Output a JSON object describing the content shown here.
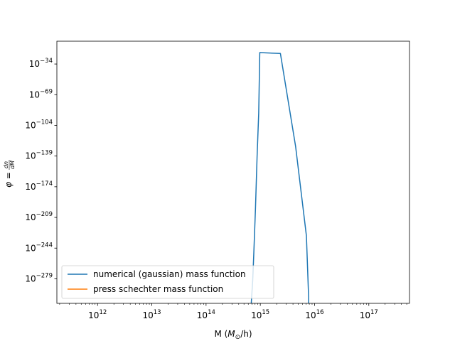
{
  "chart_data": {
    "type": "line",
    "title": "",
    "xlabel": "M ($M_\\odot$/h)",
    "xlabel_display": {
      "prefix": "M (",
      "symbol": "M",
      "subscript": "⊙",
      "suffix": "/h)"
    },
    "ylabel": "$\\phi = \\frac{dn}{dM}$",
    "ylabel_display": {
      "lhs": "φ = ",
      "numerator": "dn",
      "denominator": "dM"
    },
    "xscale": "log",
    "yscale": "log",
    "xlim_exp": [
      11.25,
      17.75
    ],
    "ylim_exp": [
      -307,
      -8
    ],
    "grid": false,
    "legend_location": "lower left",
    "x_ticks": [
      {
        "base": "10",
        "exp": "12",
        "value_exp": 12
      },
      {
        "base": "10",
        "exp": "13",
        "value_exp": 13
      },
      {
        "base": "10",
        "exp": "14",
        "value_exp": 14
      },
      {
        "base": "10",
        "exp": "15",
        "value_exp": 15
      },
      {
        "base": "10",
        "exp": "16",
        "value_exp": 16
      },
      {
        "base": "10",
        "exp": "17",
        "value_exp": 17
      }
    ],
    "y_ticks": [
      {
        "base": "10",
        "exp": "−34",
        "value_exp": -34
      },
      {
        "base": "10",
        "exp": "−69",
        "value_exp": -69
      },
      {
        "base": "10",
        "exp": "−104",
        "value_exp": -104
      },
      {
        "base": "10",
        "exp": "−139",
        "value_exp": -139
      },
      {
        "base": "10",
        "exp": "−174",
        "value_exp": -174
      },
      {
        "base": "10",
        "exp": "−209",
        "value_exp": -209
      },
      {
        "base": "10",
        "exp": "−244",
        "value_exp": -244
      },
      {
        "base": "10",
        "exp": "−279",
        "value_exp": -279
      }
    ],
    "series": [
      {
        "name": "numerical (gaussian) mass function",
        "color": "#1f77b4",
        "points_log10": [
          [
            14.83,
            -310
          ],
          [
            14.86,
            -280
          ],
          [
            14.88,
            -250
          ],
          [
            14.91,
            -200
          ],
          [
            14.94,
            -140
          ],
          [
            14.97,
            -90
          ],
          [
            14.99,
            -21
          ],
          [
            15.37,
            -22
          ],
          [
            15.65,
            -128
          ],
          [
            15.85,
            -230
          ],
          [
            15.89,
            -300
          ],
          [
            15.89,
            -310
          ]
        ]
      },
      {
        "name": "press schechter mass function",
        "color": "#ff7f0e",
        "points_log10": []
      }
    ]
  }
}
